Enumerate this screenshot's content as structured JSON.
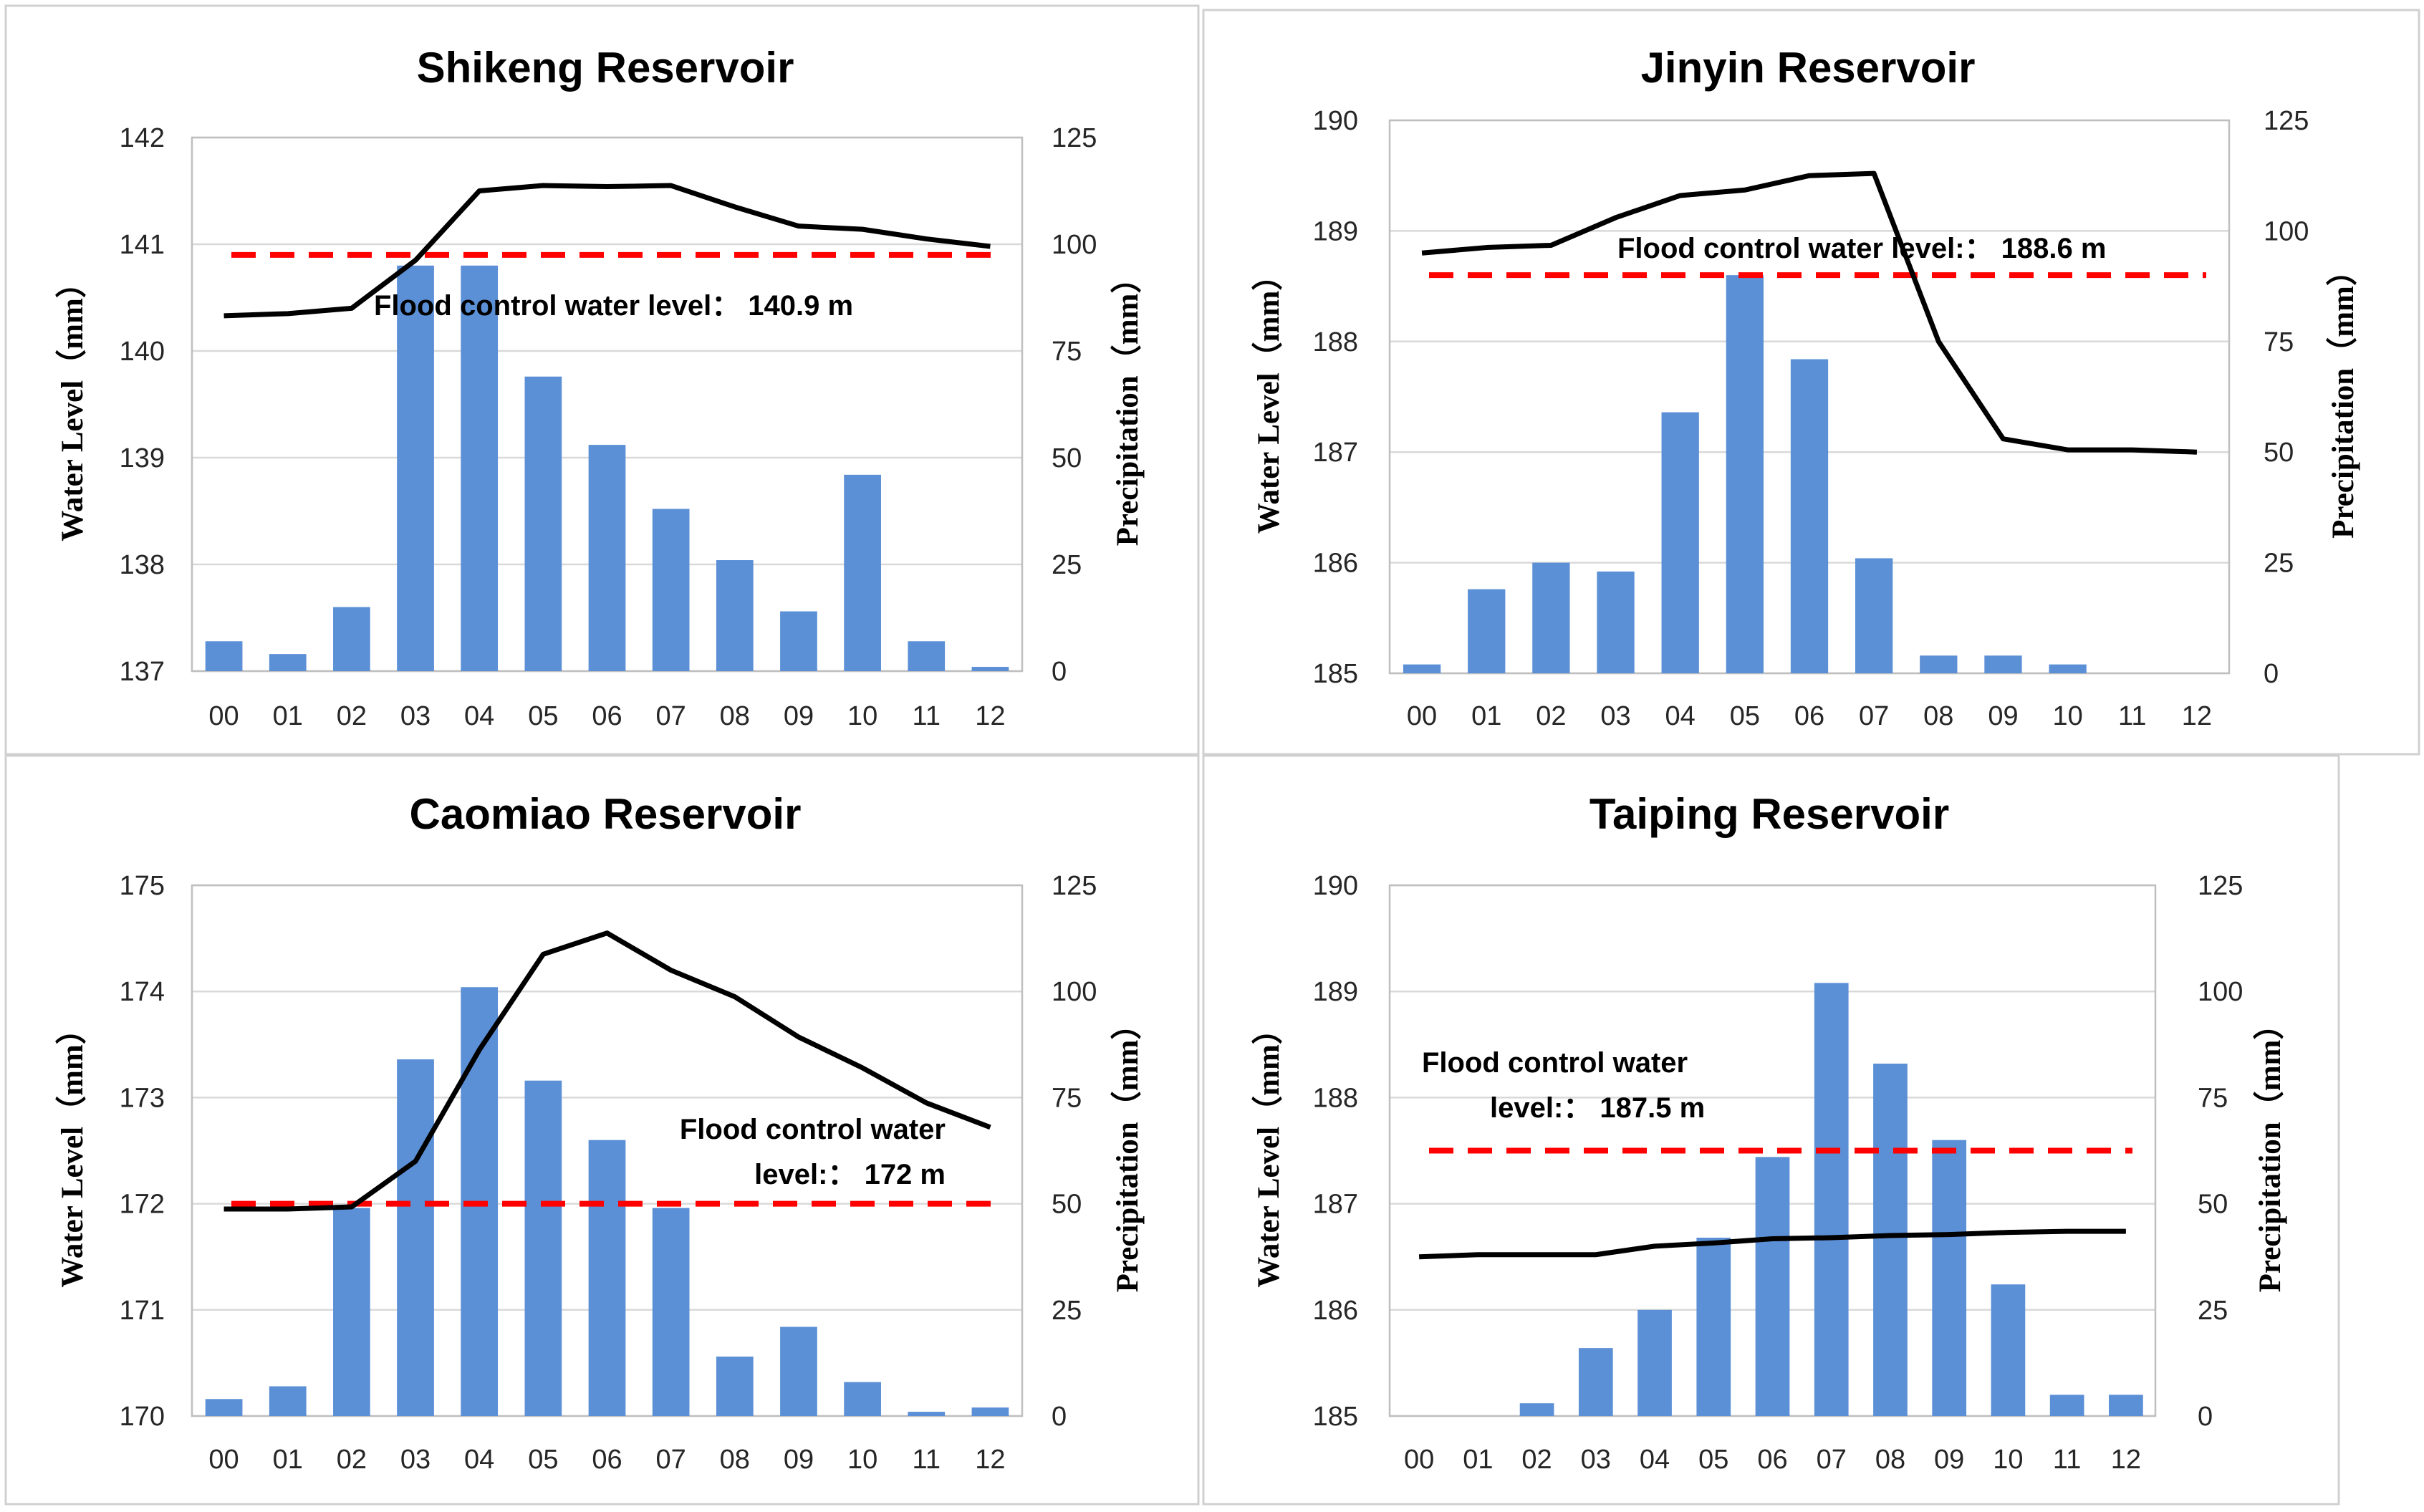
{
  "chart_data": [
    {
      "type": "bar+line",
      "title": "Shikeng Reservoir",
      "ylabel": "Water Level（mm）",
      "y2label": "Precipitation（mm）",
      "xlabel": "",
      "categories": [
        "00",
        "01",
        "02",
        "03",
        "04",
        "05",
        "06",
        "07",
        "08",
        "09",
        "10",
        "11",
        "12"
      ],
      "ylim": [
        137,
        142
      ],
      "yticks": [
        137,
        138,
        139,
        140,
        141,
        142
      ],
      "y2lim": [
        0,
        125
      ],
      "y2ticks": [
        0,
        25,
        50,
        75,
        100,
        125
      ],
      "grid": true,
      "series": [
        {
          "name": "Precipitation",
          "kind": "bar",
          "axis": "right",
          "values": [
            7,
            4,
            15,
            95,
            95,
            69,
            53,
            38,
            26,
            14,
            46,
            7,
            1
          ]
        },
        {
          "name": "Water Level",
          "kind": "line",
          "axis": "left",
          "values": [
            140.33,
            140.35,
            140.4,
            140.85,
            141.5,
            141.55,
            141.54,
            141.55,
            141.35,
            141.17,
            141.14,
            141.05,
            140.98
          ]
        }
      ],
      "flood_level": {
        "value": 140.9,
        "label": "Flood control water level： 140.9 m"
      }
    },
    {
      "type": "bar+line",
      "title": "Jinyin Reservoir",
      "ylabel": "Water Level（mm）",
      "y2label": "Precipitation（mm）",
      "xlabel": "",
      "categories": [
        "00",
        "01",
        "02",
        "03",
        "04",
        "05",
        "06",
        "07",
        "08",
        "09",
        "10",
        "11",
        "12"
      ],
      "ylim": [
        185,
        190
      ],
      "yticks": [
        185,
        186,
        187,
        188,
        189,
        190
      ],
      "y2lim": [
        0,
        125
      ],
      "y2ticks": [
        0,
        25,
        50,
        75,
        100,
        125
      ],
      "grid": true,
      "series": [
        {
          "name": "Precipitation",
          "kind": "bar",
          "axis": "right",
          "values": [
            2,
            19,
            25,
            23,
            59,
            90,
            71,
            26,
            4,
            4,
            2,
            0,
            0
          ]
        },
        {
          "name": "Water Level",
          "kind": "line",
          "axis": "left",
          "values": [
            188.8,
            188.85,
            188.87,
            189.12,
            189.32,
            189.37,
            189.5,
            189.52,
            188.0,
            187.12,
            187.02,
            187.02,
            187.0
          ]
        }
      ],
      "flood_level": {
        "value": 188.6,
        "label": "Flood control water level:： 188.6 m"
      }
    },
    {
      "type": "bar+line",
      "title": "Caomiao Reservoir",
      "ylabel": "Water Level（mm）",
      "y2label": "Precipitation（mm）",
      "xlabel": "",
      "categories": [
        "00",
        "01",
        "02",
        "03",
        "04",
        "05",
        "06",
        "07",
        "08",
        "09",
        "10",
        "11",
        "12"
      ],
      "ylim": [
        170,
        175
      ],
      "yticks": [
        170,
        171,
        172,
        173,
        174,
        175
      ],
      "y2lim": [
        0,
        125
      ],
      "y2ticks": [
        0,
        25,
        50,
        75,
        100,
        125
      ],
      "grid": true,
      "series": [
        {
          "name": "Precipitation",
          "kind": "bar",
          "axis": "right",
          "values": [
            4,
            7,
            49,
            84,
            101,
            79,
            65,
            49,
            14,
            21,
            8,
            1,
            2
          ]
        },
        {
          "name": "Water Level",
          "kind": "line",
          "axis": "left",
          "values": [
            171.95,
            171.95,
            171.97,
            172.4,
            173.45,
            174.35,
            174.55,
            174.2,
            173.95,
            173.57,
            173.28,
            172.95,
            172.72
          ]
        }
      ],
      "flood_level": {
        "value": 172.0,
        "label_line1": "Flood control water",
        "label_line2": "level:： 172 m"
      }
    },
    {
      "type": "bar+line",
      "title": "Taiping Reservoir",
      "ylabel": "Water Level（mm）",
      "y2label": "Precipitation（mm）",
      "xlabel": "",
      "categories": [
        "00",
        "01",
        "02",
        "03",
        "04",
        "05",
        "06",
        "07",
        "08",
        "09",
        "10",
        "11",
        "12"
      ],
      "ylim": [
        185,
        190
      ],
      "yticks": [
        185,
        186,
        187,
        188,
        189,
        190
      ],
      "y2lim": [
        0,
        125
      ],
      "y2ticks": [
        0,
        25,
        50,
        75,
        100,
        125
      ],
      "grid": true,
      "series": [
        {
          "name": "Precipitation",
          "kind": "bar",
          "axis": "right",
          "values": [
            0,
            0,
            3,
            16,
            25,
            42,
            61,
            102,
            83,
            65,
            31,
            5,
            5
          ]
        },
        {
          "name": "Water Level",
          "kind": "line",
          "axis": "left",
          "values": [
            186.5,
            186.52,
            186.52,
            186.52,
            186.6,
            186.63,
            186.67,
            186.68,
            186.7,
            186.71,
            186.73,
            186.74,
            186.74
          ]
        }
      ],
      "flood_level": {
        "value": 187.5,
        "label_line1": "Flood control water",
        "label_line2": "level:： 187.5 m"
      }
    }
  ],
  "colors": {
    "bar": "#5b8fd6",
    "line": "#000000",
    "flood_line": "#ff0000",
    "grid": "#d9d9d9",
    "border": "#bfbfbf"
  }
}
